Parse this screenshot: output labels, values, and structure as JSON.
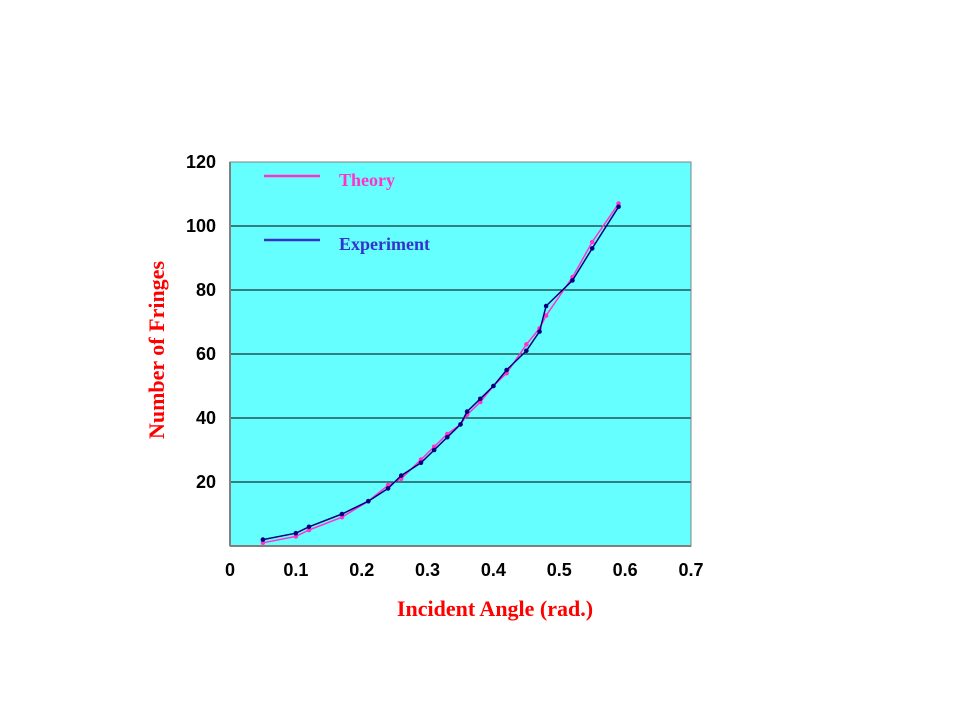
{
  "chart_data": {
    "type": "line",
    "title": "",
    "xlabel": "Incident Angle (rad.)",
    "ylabel": "Number of Fringes",
    "xlim": [
      0,
      0.7
    ],
    "ylim": [
      0,
      120
    ],
    "x_ticks": [
      "0",
      "0.1",
      "0.2",
      "0.3",
      "0.4",
      "0.5",
      "0.6",
      "0.7"
    ],
    "x_tick_values": [
      0,
      0.1,
      0.2,
      0.3,
      0.4,
      0.5,
      0.6,
      0.7
    ],
    "y_ticks": [
      "20",
      "40",
      "60",
      "80",
      "100",
      "120"
    ],
    "y_tick_values": [
      20,
      40,
      60,
      80,
      100,
      120
    ],
    "grid": "horizontal",
    "legend": "top-left",
    "background_color": "#66FFFF",
    "series": [
      {
        "name": "Theory",
        "color": "#FF33CC",
        "x": [
          0.05,
          0.1,
          0.12,
          0.17,
          0.21,
          0.24,
          0.26,
          0.29,
          0.31,
          0.33,
          0.35,
          0.36,
          0.38,
          0.4,
          0.42,
          0.45,
          0.47,
          0.48,
          0.52,
          0.55,
          0.59
        ],
        "y": [
          1,
          3,
          5,
          9,
          14,
          19,
          21,
          27,
          31,
          35,
          38,
          41,
          45,
          50,
          54,
          63,
          68,
          72,
          84,
          95,
          107
        ]
      },
      {
        "name": "Experiment",
        "color": "#000080",
        "x": [
          0.05,
          0.1,
          0.12,
          0.17,
          0.21,
          0.24,
          0.26,
          0.29,
          0.31,
          0.33,
          0.35,
          0.36,
          0.38,
          0.4,
          0.42,
          0.45,
          0.47,
          0.48,
          0.52,
          0.55,
          0.59
        ],
        "y": [
          2,
          4,
          6,
          10,
          14,
          18,
          22,
          26,
          30,
          34,
          38,
          42,
          46,
          50,
          55,
          61,
          67,
          75,
          83,
          93,
          106
        ]
      }
    ]
  }
}
